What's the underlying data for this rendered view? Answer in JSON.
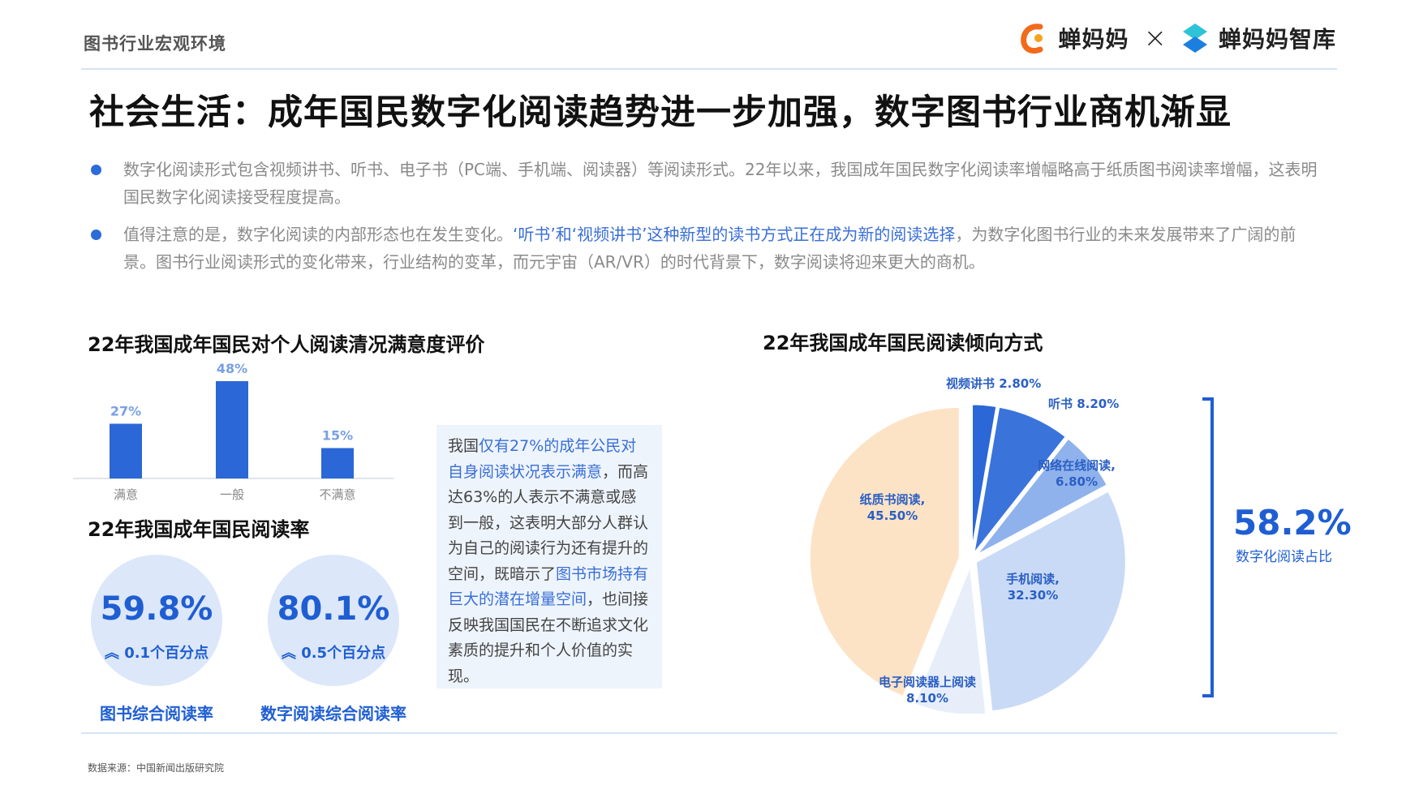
{
  "header": {
    "section": "图书行业宏观环境",
    "logo_left": "蝉妈妈",
    "logo_sep": "×",
    "logo_right": "蝉妈妈智库"
  },
  "title": "社会生活：成年国民数字化阅读趋势进一步加强，数字图书行业商机渐显",
  "bullets": [
    {
      "text": "数字化阅读形式包含视频讲书、听书、电子书（PC端、手机端、阅读器）等阅读形式。22年以来，我国成年国民数字化阅读率增幅略高于纸质图书阅读率增幅，这表明国民数字化阅读接受程度提高。"
    },
    {
      "pre": "值得注意的是，数字化阅读的内部形态也在发生变化。",
      "highlight": "‘听书’和‘视频讲书’这种新型的读书方式正在成为新的阅读选择",
      "post": "，为数字化图书行业的未来发展带来了广阔的前景。图书行业阅读形式的变化带来，行业结构的变革，而元宇宙（AR/VR）的时代背景下，数字阅读将迎来更大的商机。"
    }
  ],
  "chart_data": [
    {
      "type": "bar",
      "title": "22年我国成年国民对个人阅读清况满意度评价",
      "categories": [
        "满意",
        "一般",
        "不满意"
      ],
      "values": [
        27,
        48,
        15
      ],
      "value_labels": [
        "27%",
        "48%",
        "15%"
      ],
      "ylim": [
        0,
        50
      ],
      "color": "#2b67d6"
    },
    {
      "type": "pie",
      "title": "22年我国成年国民阅读倾向方式",
      "labels": [
        "视频讲书",
        "听书",
        "网络在线阅读",
        "手机阅读",
        "电子阅读器上阅读",
        "纸质书阅读"
      ],
      "values": [
        2.8,
        8.2,
        6.8,
        32.3,
        8.1,
        45.5
      ],
      "value_labels": [
        "2.80%",
        "8.20%",
        "6.80%",
        "32.30%",
        "8.10%",
        "45.50%"
      ],
      "colors": [
        "#2b67d6",
        "#3a74db",
        "#8fb2ec",
        "#c9daf6",
        "#e7eefa",
        "#fde3c6"
      ]
    }
  ],
  "satisfaction_chart": {
    "title": "22年我国成年国民对个人阅读清况满意度评价"
  },
  "reading_rate": {
    "title": "22年我国成年国民阅读率",
    "items": [
      {
        "value": "59.8%",
        "change": "0.1个百分点",
        "label": "图书综合阅读率"
      },
      {
        "value": "80.1%",
        "change": "0.5个百分点",
        "label": "数字阅读综合阅读率"
      }
    ]
  },
  "info_box": {
    "p1": "我国",
    "h1": "仅有27%的成年公民对自身阅读状况表示满意",
    "p2": "，而高达63%的人表示不满意或感到一般，这表明大部分人群认为自己的阅读行为还有提升的空间，既暗示了",
    "h2": "图书市场持有巨大的潜在增量空间",
    "p3": "，也间接反映我国国民在不断追求文化素质的提升和个人价值的实现。"
  },
  "pie_chart": {
    "title": "22年我国成年国民阅读倾向方式",
    "digital_share": "58.2%",
    "digital_label": "数字化阅读占比",
    "label_texts": {
      "video": [
        "视频讲书 2.80%"
      ],
      "audio": [
        "听书 8.20%"
      ],
      "online": [
        "网络在线阅读,",
        "6.80%"
      ],
      "mobile": [
        "手机阅读,",
        "32.30%"
      ],
      "ereader": [
        "电子阅读器上阅读",
        "8.10%"
      ],
      "paper": [
        "纸质书阅读,",
        "45.50%"
      ]
    }
  },
  "footer": {
    "source": "数据来源：中国新闻出版研究院"
  },
  "colors": {
    "accent": "#1f5ed2",
    "bar": "#2b67d6",
    "circle_bg": "#dce7f9",
    "info_bg": "#eef4fc"
  }
}
